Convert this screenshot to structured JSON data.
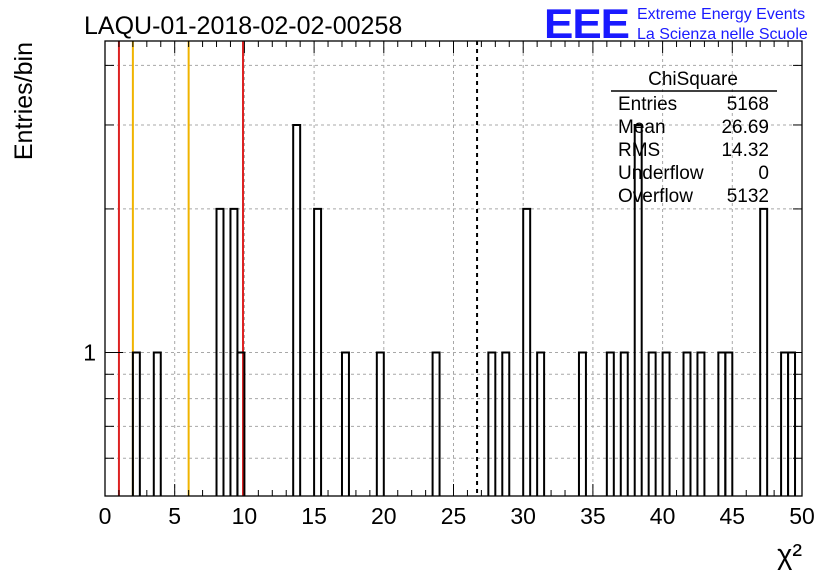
{
  "title": "LAQU-01-2018-02-02-00258",
  "logo": {
    "mark": "EEE",
    "line1": "Extreme Energy Events",
    "line2": "La Scienza nelle Scuole",
    "color": "#1a1aff"
  },
  "stats_box": {
    "title": "ChiSquare",
    "rows": [
      {
        "label": "Entries",
        "value": "5168"
      },
      {
        "label": "Mean",
        "value": "26.69"
      },
      {
        "label": "RMS",
        "value": "14.32"
      },
      {
        "label": "Underflow",
        "value": "0"
      },
      {
        "label": "Overflow",
        "value": "5132"
      }
    ]
  },
  "chart_data": {
    "type": "histogram",
    "title": "LAQU-01-2018-02-02-00258",
    "xlabel": "χ²",
    "ylabel": "Entries/bin",
    "xlim": [
      0,
      50
    ],
    "ylim": [
      0.5,
      4.5
    ],
    "yscale": "log",
    "bin_width": 0.5,
    "x_ticks": [
      0,
      5,
      10,
      15,
      20,
      25,
      30,
      35,
      40,
      45,
      50
    ],
    "x_tick_labels": [
      "0",
      "5",
      "10",
      "15",
      "20",
      "25",
      "30",
      "35",
      "40",
      "45",
      "50"
    ],
    "y_tick_labels": [
      {
        "value": 1,
        "label": "1"
      }
    ],
    "y_grid": [
      0.6,
      0.7,
      0.8,
      0.9,
      1,
      2,
      3,
      4
    ],
    "bins": [
      {
        "x": 2.0,
        "count": 1
      },
      {
        "x": 3.5,
        "count": 1
      },
      {
        "x": 8.0,
        "count": 2
      },
      {
        "x": 9.0,
        "count": 2
      },
      {
        "x": 9.5,
        "count": 1
      },
      {
        "x": 13.5,
        "count": 3
      },
      {
        "x": 15.0,
        "count": 2
      },
      {
        "x": 17.0,
        "count": 1
      },
      {
        "x": 19.5,
        "count": 1
      },
      {
        "x": 23.5,
        "count": 1
      },
      {
        "x": 27.5,
        "count": 1
      },
      {
        "x": 28.5,
        "count": 1
      },
      {
        "x": 30.0,
        "count": 2
      },
      {
        "x": 31.0,
        "count": 1
      },
      {
        "x": 34.0,
        "count": 1
      },
      {
        "x": 36.0,
        "count": 1
      },
      {
        "x": 37.0,
        "count": 1
      },
      {
        "x": 38.0,
        "count": 3
      },
      {
        "x": 39.0,
        "count": 1
      },
      {
        "x": 40.0,
        "count": 1
      },
      {
        "x": 41.5,
        "count": 1
      },
      {
        "x": 42.5,
        "count": 1
      },
      {
        "x": 44.0,
        "count": 1
      },
      {
        "x": 44.5,
        "count": 1
      },
      {
        "x": 47.0,
        "count": 2
      },
      {
        "x": 48.5,
        "count": 1
      },
      {
        "x": 49.0,
        "count": 1
      }
    ],
    "reference_lines": [
      {
        "x": 1.0,
        "color": "#dd2222",
        "style": "solid"
      },
      {
        "x": 2.0,
        "color": "#f0b400",
        "style": "solid"
      },
      {
        "x": 6.0,
        "color": "#f0b400",
        "style": "solid"
      },
      {
        "x": 9.9,
        "color": "#dd2222",
        "style": "solid"
      },
      {
        "x": 26.69,
        "color": "#000000",
        "style": "dashed"
      }
    ]
  }
}
